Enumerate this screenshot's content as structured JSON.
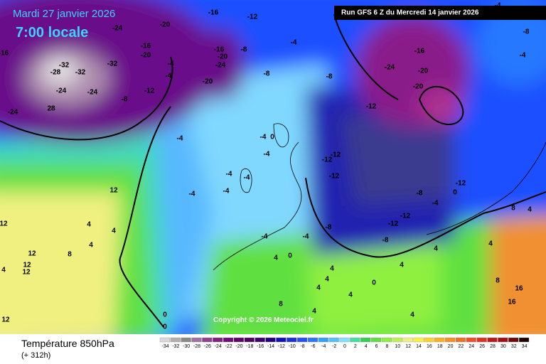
{
  "header": {
    "date": "Mardi 27 janvier 2026",
    "time": "7:00 locale",
    "run": "Run GFS 6 Z du Mercredi 14 janvier 2026"
  },
  "footer": {
    "title": "Température 850hPa",
    "lead": "(+ 312h)",
    "copyright": "Copyright © 2026 Meteociel.fr"
  },
  "scale": {
    "values": [
      -34,
      -32,
      -30,
      -28,
      -26,
      -24,
      -22,
      -20,
      -18,
      -16,
      -14,
      -12,
      -10,
      -8,
      -6,
      -4,
      -2,
      0,
      2,
      4,
      6,
      8,
      10,
      12,
      14,
      16,
      18,
      20,
      22,
      24,
      26,
      28,
      30,
      32,
      34
    ],
    "colors": [
      "#d8d8d8",
      "#b0b0b0",
      "#888888",
      "#a070a0",
      "#904090",
      "#802080",
      "#700c78",
      "#600068",
      "#500060",
      "#3c0070",
      "#200080",
      "#1010c0",
      "#1830e0",
      "#2050ff",
      "#2878ff",
      "#30a0ff",
      "#50c0ff",
      "#80e0ff",
      "#40e0a0",
      "#30d050",
      "#60e040",
      "#90f040",
      "#c0f050",
      "#f0f080",
      "#f8f040",
      "#f8d030",
      "#f8b020",
      "#f89020",
      "#f07020",
      "#f05020",
      "#e03020",
      "#c01818",
      "#a01010",
      "#700808",
      "#200000"
    ]
  },
  "map_labels": [
    -24,
    -20,
    -16,
    -12,
    -16,
    -16,
    -20,
    -16,
    -20,
    -8,
    -24,
    -20,
    -4,
    -4,
    -8,
    -4,
    -8,
    -12,
    -24,
    -16,
    -20,
    -20,
    -4,
    -8,
    -4,
    -24,
    28,
    -32,
    -28,
    -32,
    -32,
    -24,
    -24,
    -12,
    -8,
    -4,
    -4,
    0,
    -4,
    -12,
    -12,
    -12,
    -4,
    -4,
    -4,
    -4,
    -12,
    0,
    -8,
    -4,
    -12,
    -12,
    -8,
    -4,
    -4,
    -8,
    4,
    0,
    4,
    4,
    0,
    4,
    4,
    4,
    8,
    8,
    16,
    16,
    4,
    4,
    4,
    8,
    0,
    0,
    4,
    4,
    8,
    12,
    12,
    12,
    12,
    4,
    12,
    12,
    4,
    4,
    4
  ]
}
